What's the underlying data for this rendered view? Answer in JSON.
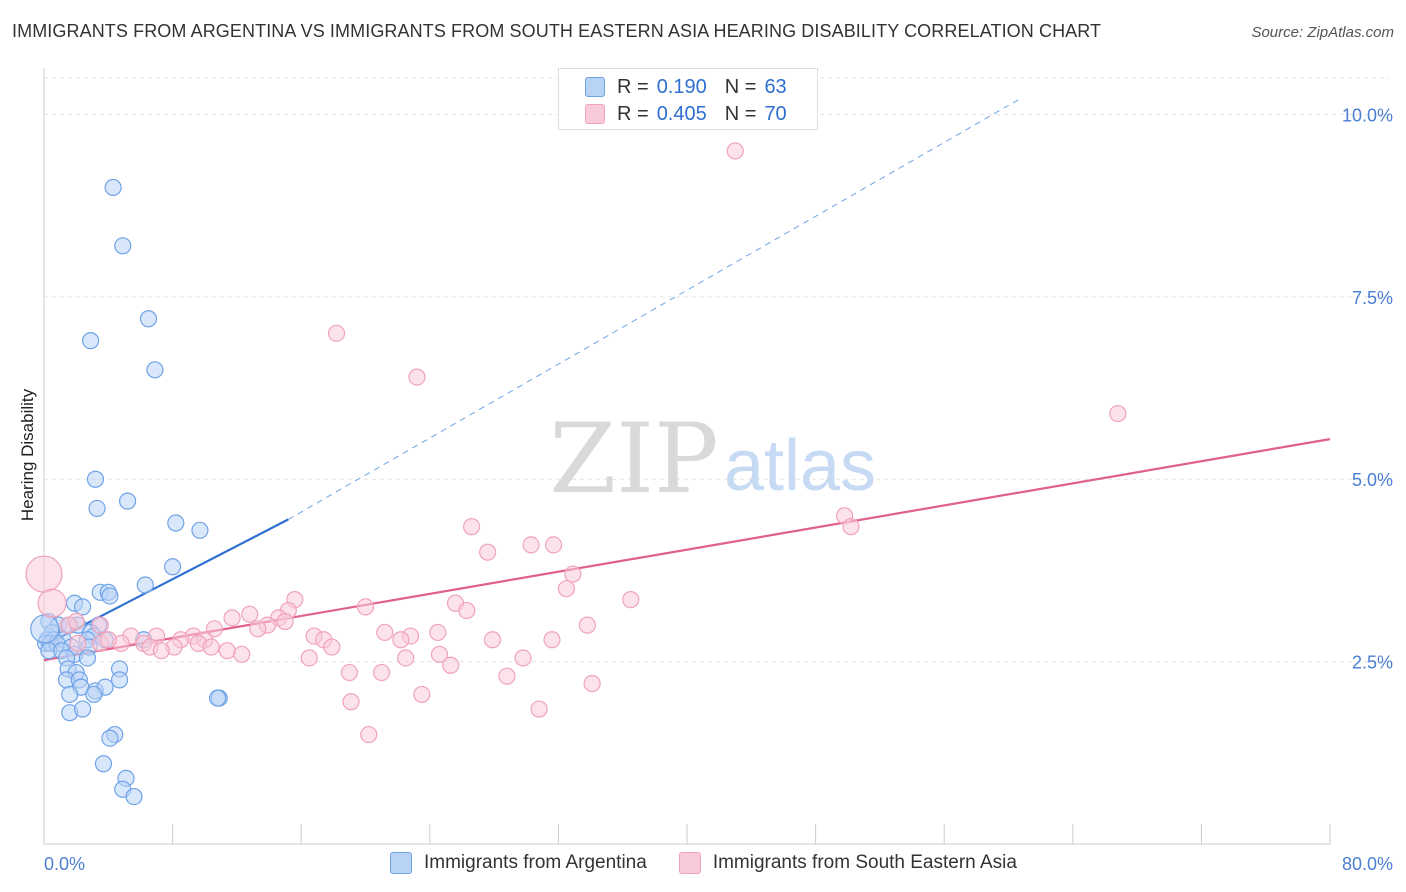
{
  "header": {
    "title": "IMMIGRANTS FROM ARGENTINA VS IMMIGRANTS FROM SOUTH EASTERN ASIA HEARING DISABILITY CORRELATION CHART",
    "source": "Source: ZipAtlas.com"
  },
  "watermark": {
    "zip": "ZIP",
    "atlas": "atlas"
  },
  "legend": {
    "rows": [
      {
        "r_label": "R =",
        "r_value": "0.190",
        "n_label": "N =",
        "n_value": "63"
      },
      {
        "r_label": "R =",
        "r_value": "0.405",
        "n_label": "N =",
        "n_value": "70"
      }
    ]
  },
  "chart_data": {
    "type": "scatter",
    "title": "IMMIGRANTS FROM ARGENTINA VS IMMIGRANTS FROM SOUTH EASTERN ASIA HEARING DISABILITY CORRELATION CHART",
    "xlabel": "",
    "ylabel": "Hearing Disability",
    "xlim": [
      0,
      80
    ],
    "ylim": [
      0,
      10.5
    ],
    "x_tick_labels": [
      "0.0%",
      "80.0%"
    ],
    "y_ticks": [
      2.5,
      5.0,
      7.5,
      10.0
    ],
    "y_tick_labels": [
      "2.5%",
      "5.0%",
      "7.5%",
      "10.0%"
    ],
    "grid": true,
    "colors": {
      "blue": "#6fa3e8",
      "blue_fill": "#b9d3f5",
      "blue_line": "#2f6fd1",
      "pink": "#f0a3bb",
      "pink_fill": "#f9cbd9",
      "pink_line": "#e0608a",
      "axis_text": "#4a7fd1"
    },
    "series": [
      {
        "name": "Immigrants from Argentina",
        "color": "#6fa3e8",
        "r": 0.19,
        "n": 63,
        "trend": {
          "x0": 0,
          "y0": 2.72,
          "x1": 15.2,
          "y1": 4.45,
          "dash_to_x": 60.6,
          "dash_to_y": 10.2
        },
        "points": [
          [
            4.3,
            9.0
          ],
          [
            4.9,
            8.2
          ],
          [
            6.5,
            7.2
          ],
          [
            2.9,
            6.9
          ],
          [
            6.9,
            6.5
          ],
          [
            3.2,
            5.0
          ],
          [
            5.2,
            4.7
          ],
          [
            3.3,
            4.6
          ],
          [
            8.2,
            4.4
          ],
          [
            9.7,
            4.3
          ],
          [
            8.0,
            3.8
          ],
          [
            6.3,
            3.55
          ],
          [
            3.5,
            3.45
          ],
          [
            4.0,
            3.45
          ],
          [
            4.1,
            3.4
          ],
          [
            1.9,
            3.3
          ],
          [
            2.4,
            3.25
          ],
          [
            0.3,
            3.05
          ],
          [
            0.9,
            3.0
          ],
          [
            1.6,
            3.0
          ],
          [
            2.1,
            3.0
          ],
          [
            3.4,
            3.0
          ],
          [
            0.5,
            2.9
          ],
          [
            2.9,
            2.9
          ],
          [
            3.1,
            2.85
          ],
          [
            0.2,
            2.8
          ],
          [
            0.6,
            2.8
          ],
          [
            1.2,
            2.8
          ],
          [
            2.7,
            2.8
          ],
          [
            3.8,
            2.8
          ],
          [
            6.2,
            2.8
          ],
          [
            0.1,
            2.75
          ],
          [
            0.4,
            2.75
          ],
          [
            0.8,
            2.75
          ],
          [
            1.7,
            2.7
          ],
          [
            2.8,
            2.7
          ],
          [
            0.3,
            2.65
          ],
          [
            1.1,
            2.65
          ],
          [
            1.9,
            2.6
          ],
          [
            2.7,
            2.55
          ],
          [
            1.4,
            2.55
          ],
          [
            1.5,
            2.4
          ],
          [
            2.0,
            2.35
          ],
          [
            4.7,
            2.4
          ],
          [
            1.4,
            2.25
          ],
          [
            2.2,
            2.25
          ],
          [
            4.7,
            2.25
          ],
          [
            2.3,
            2.15
          ],
          [
            3.2,
            2.1
          ],
          [
            3.8,
            2.15
          ],
          [
            1.6,
            2.05
          ],
          [
            3.1,
            2.05
          ],
          [
            10.9,
            2.0
          ],
          [
            10.8,
            2.0
          ],
          [
            1.6,
            1.8
          ],
          [
            2.4,
            1.85
          ],
          [
            4.4,
            1.5
          ],
          [
            4.1,
            1.45
          ],
          [
            3.7,
            1.1
          ],
          [
            5.1,
            0.9
          ],
          [
            4.9,
            0.75
          ],
          [
            5.6,
            0.65
          ],
          [
            0.05,
            2.95
          ]
        ]
      },
      {
        "name": "Immigrants from South Eastern Asia",
        "color": "#f0a3bb",
        "r": 0.405,
        "n": 70,
        "trend": {
          "x0": 0,
          "y0": 2.52,
          "x1": 80,
          "y1": 5.55
        },
        "points": [
          [
            43.0,
            9.5
          ],
          [
            18.2,
            7.0
          ],
          [
            23.2,
            6.4
          ],
          [
            66.8,
            5.9
          ],
          [
            49.8,
            4.5
          ],
          [
            50.2,
            4.35
          ],
          [
            26.6,
            4.35
          ],
          [
            27.6,
            4.0
          ],
          [
            30.3,
            4.1
          ],
          [
            31.7,
            4.1
          ],
          [
            32.9,
            3.7
          ],
          [
            32.5,
            3.5
          ],
          [
            36.5,
            3.35
          ],
          [
            15.6,
            3.35
          ],
          [
            25.6,
            3.3
          ],
          [
            26.3,
            3.2
          ],
          [
            20.0,
            3.25
          ],
          [
            15.2,
            3.2
          ],
          [
            12.8,
            3.15
          ],
          [
            11.7,
            3.1
          ],
          [
            14.6,
            3.1
          ],
          [
            15.0,
            3.05
          ],
          [
            13.9,
            3.0
          ],
          [
            33.8,
            3.0
          ],
          [
            3.5,
            3.0
          ],
          [
            1.5,
            3.0
          ],
          [
            10.6,
            2.95
          ],
          [
            13.3,
            2.95
          ],
          [
            21.2,
            2.9
          ],
          [
            24.5,
            2.9
          ],
          [
            22.8,
            2.85
          ],
          [
            16.8,
            2.85
          ],
          [
            17.4,
            2.8
          ],
          [
            5.4,
            2.85
          ],
          [
            7.0,
            2.85
          ],
          [
            9.3,
            2.85
          ],
          [
            8.5,
            2.8
          ],
          [
            10.0,
            2.8
          ],
          [
            22.2,
            2.8
          ],
          [
            27.9,
            2.8
          ],
          [
            31.6,
            2.8
          ],
          [
            9.6,
            2.75
          ],
          [
            6.2,
            2.75
          ],
          [
            4.8,
            2.75
          ],
          [
            3.5,
            2.75
          ],
          [
            2.1,
            2.75
          ],
          [
            4.0,
            2.8
          ],
          [
            17.9,
            2.7
          ],
          [
            8.1,
            2.7
          ],
          [
            10.4,
            2.7
          ],
          [
            6.6,
            2.7
          ],
          [
            7.3,
            2.65
          ],
          [
            11.4,
            2.65
          ],
          [
            12.3,
            2.6
          ],
          [
            16.5,
            2.55
          ],
          [
            24.6,
            2.6
          ],
          [
            29.8,
            2.55
          ],
          [
            25.3,
            2.45
          ],
          [
            22.5,
            2.55
          ],
          [
            19.0,
            2.35
          ],
          [
            21.0,
            2.35
          ],
          [
            28.8,
            2.3
          ],
          [
            34.1,
            2.2
          ],
          [
            23.5,
            2.05
          ],
          [
            19.1,
            1.95
          ],
          [
            30.8,
            1.85
          ],
          [
            20.2,
            1.5
          ],
          [
            0.0,
            3.7
          ],
          [
            0.5,
            3.3
          ],
          [
            2.0,
            3.05
          ]
        ]
      }
    ]
  },
  "bottom_legend": {
    "items": [
      {
        "label": "Immigrants from Argentina"
      },
      {
        "label": "Immigrants from South Eastern Asia"
      }
    ]
  }
}
